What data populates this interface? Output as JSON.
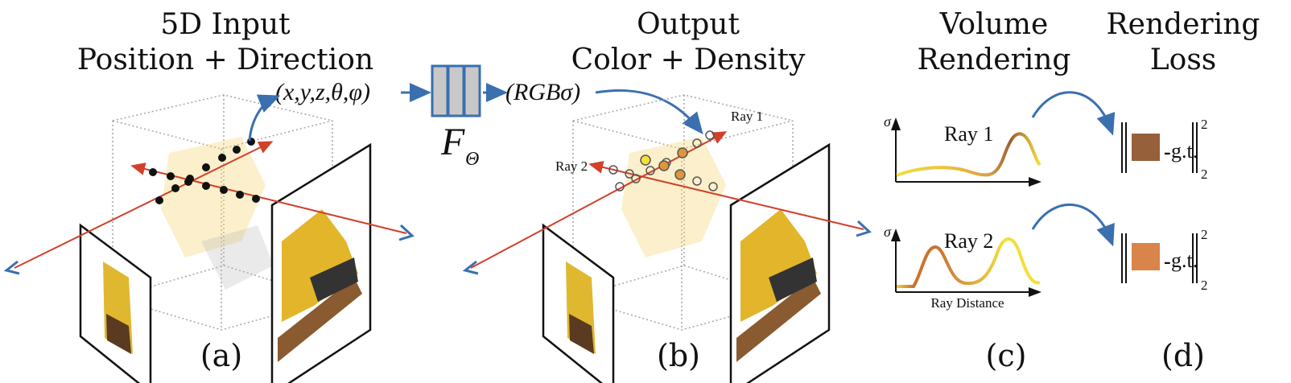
{
  "panels": {
    "a": {
      "title_line1": "5D Input",
      "title_line2": "Position + Direction",
      "label": "(a)"
    },
    "b": {
      "title_line1": "Output",
      "title_line2": "Color + Density",
      "label": "(b)",
      "ray1_label": "Ray 1",
      "ray2_label": "Ray 2"
    },
    "c": {
      "title_line1": "Volume",
      "title_line2": "Rendering",
      "label": "(c)",
      "ray1_label": "Ray 1",
      "ray2_label": "Ray 2",
      "y_axis_label": "σ",
      "x_axis_label": "Ray Distance"
    },
    "d": {
      "title_line1": "Rendering",
      "title_line2": "Loss",
      "label": "(d)",
      "minus": "-",
      "gt": "g.t.",
      "superscript": "2",
      "subscript": "2"
    }
  },
  "network": {
    "input": "(x,y,z,θ,φ)",
    "symbol": "F",
    "symbol_subscript": "Θ",
    "output": "(RGBσ)"
  },
  "colors": {
    "arrow_blue": "#3a6fb0",
    "ray_red": "#d2402a",
    "network_fill": "#c8c8c8",
    "ray1_pixel": "#96603a",
    "ray2_pixel": "#d8844a",
    "curve_yellow": "#f2e03a",
    "curve_orange": "#c9742e"
  }
}
